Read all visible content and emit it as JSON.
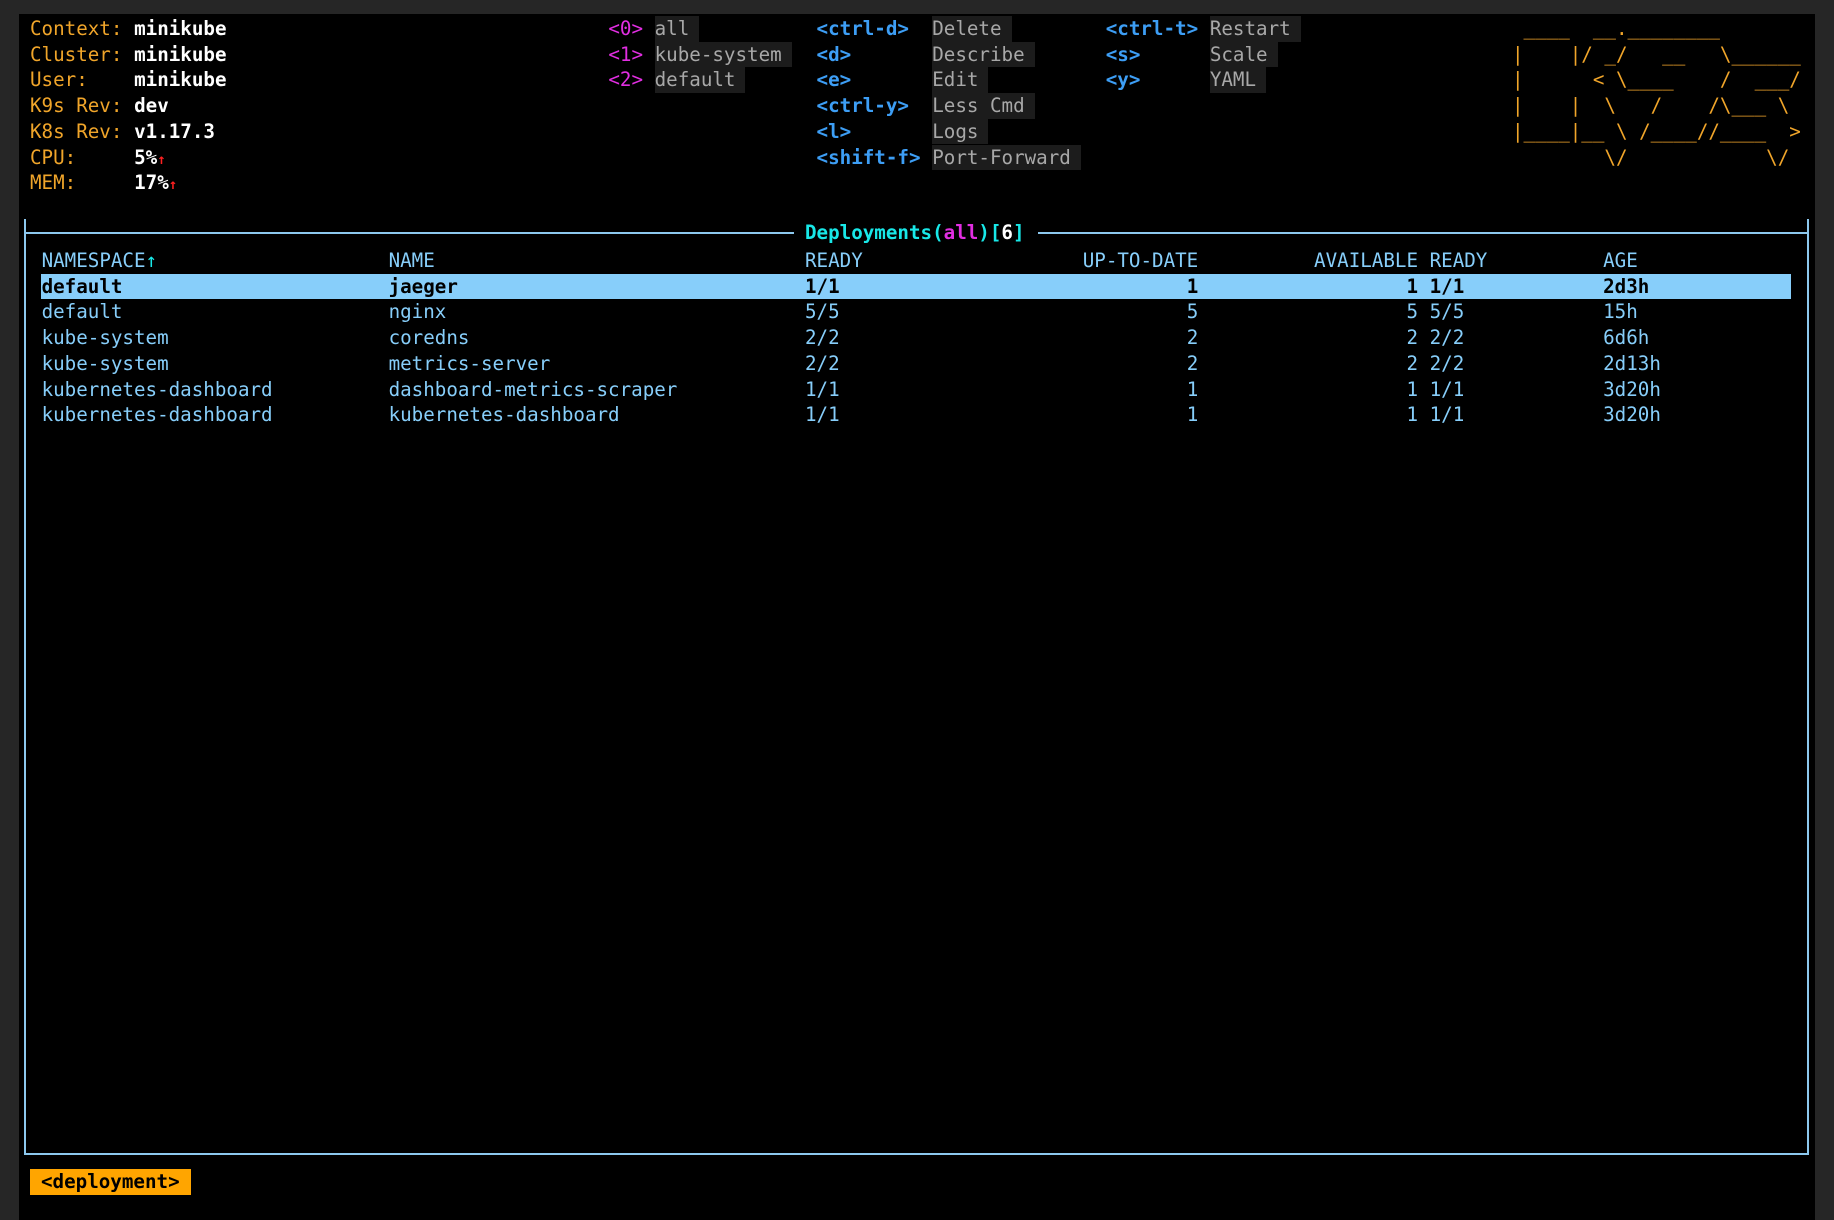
{
  "header": {
    "info": [
      {
        "label": "Context:",
        "value": "minikube"
      },
      {
        "label": "Cluster:",
        "value": "minikube"
      },
      {
        "label": "User:",
        "value": "minikube"
      },
      {
        "label": "K9s Rev:",
        "value": "dev"
      },
      {
        "label": "K8s Rev:",
        "value": "v1.17.3"
      },
      {
        "label": "CPU:",
        "value": "5%",
        "trend": "↑"
      },
      {
        "label": "MEM:",
        "value": "17%",
        "trend": "↑"
      }
    ],
    "namespaces": [
      {
        "key": "<0>",
        "label": "all"
      },
      {
        "key": "<1>",
        "label": "kube-system"
      },
      {
        "key": "<2>",
        "label": "default"
      }
    ],
    "hotkeys_col1": [
      {
        "key": "<ctrl-d>",
        "label": "Delete"
      },
      {
        "key": "<d>",
        "label": "Describe"
      },
      {
        "key": "<e>",
        "label": "Edit"
      },
      {
        "key": "<ctrl-y>",
        "label": "Less Cmd"
      },
      {
        "key": "<l>",
        "label": "Logs"
      },
      {
        "key": "<shift-f>",
        "label": "Port-Forward"
      }
    ],
    "hotkeys_col2": [
      {
        "key": "<ctrl-t>",
        "label": "Restart"
      },
      {
        "key": "<s>",
        "label": "Scale"
      },
      {
        "key": "<y>",
        "label": "YAML"
      }
    ],
    "logo": " ____  __.________       \n|    |/ _/   __   \\______\n|      < \\____    /  ___/\n|    |  \\   /    /\\___ \\ \n|____|__ \\ /____//____  >\n        \\/            \\/ "
  },
  "table": {
    "title": "Deployments",
    "filter": "all",
    "count": "6",
    "columns": [
      "NAMESPACE",
      "NAME",
      "READY",
      "UP-TO-DATE",
      "AVAILABLE",
      "READY",
      "AGE"
    ],
    "sort_indicator": "↑",
    "selected_index": 0,
    "rows": [
      [
        "default",
        "jaeger",
        "1/1",
        "1",
        "1",
        "1/1",
        "2d3h"
      ],
      [
        "default",
        "nginx",
        "5/5",
        "5",
        "5",
        "5/5",
        "15h"
      ],
      [
        "kube-system",
        "coredns",
        "2/2",
        "2",
        "2",
        "2/2",
        "6d6h"
      ],
      [
        "kube-system",
        "metrics-server",
        "2/2",
        "2",
        "2",
        "2/2",
        "2d13h"
      ],
      [
        "kubernetes-dashboard",
        "dashboard-metrics-scraper",
        "1/1",
        "1",
        "1",
        "1/1",
        "3d20h"
      ],
      [
        "kubernetes-dashboard",
        "kubernetes-dashboard",
        "1/1",
        "1",
        "1",
        "1/1",
        "3d20h"
      ]
    ]
  },
  "footer": {
    "crumb": "<deployment>"
  },
  "colors": {
    "accent": "#ffa500",
    "table_text": "#87cefa",
    "selected_bg": "#87cefa",
    "title": "#18e8e8",
    "namespace_key": "#e22ee2",
    "hotkey": "#3d9ef5"
  }
}
